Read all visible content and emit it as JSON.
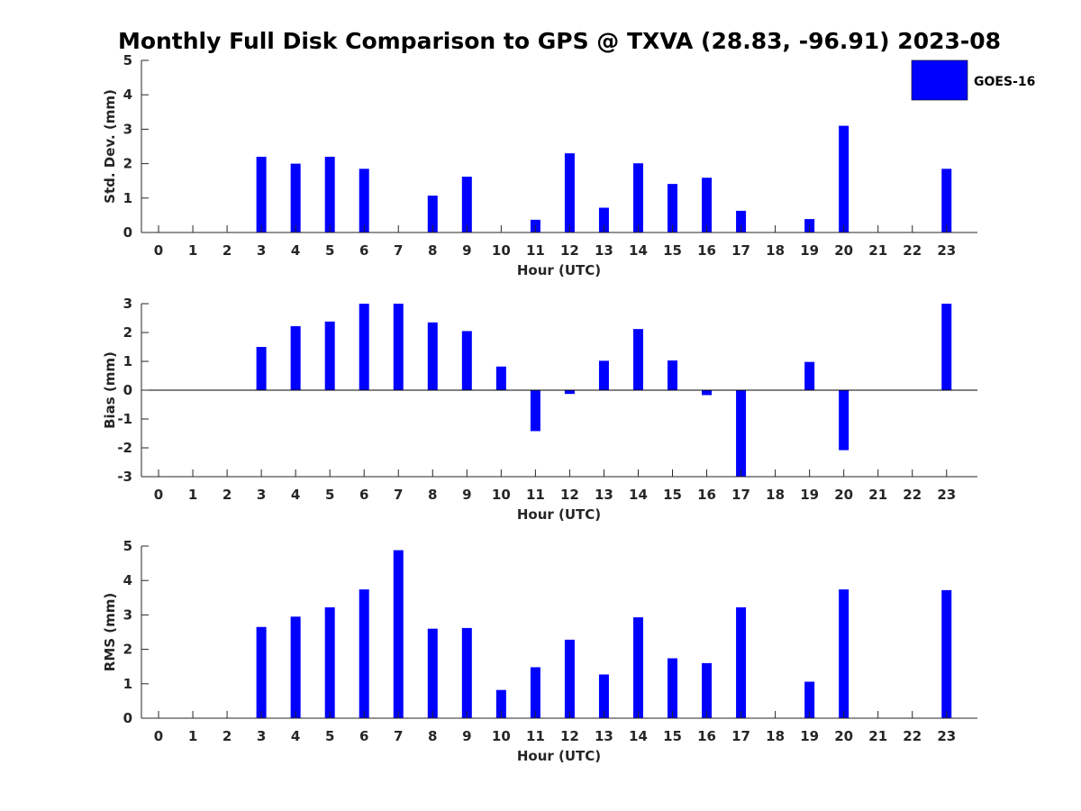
{
  "chart_data": {
    "title": "Monthly Full Disk Comparison to GPS @ TXVA (28.83, -96.91) 2023-08",
    "legend": {
      "label": "GOES-16",
      "placement": "top-right",
      "color": "#0000ff"
    },
    "bar_color": "#0000ff",
    "charts": [
      {
        "type": "bar",
        "name": "std-dev",
        "ylabel": "Std. Dev. (mm)",
        "xlabel": "Hour (UTC)",
        "xlim": [
          -0.5,
          23.9
        ],
        "ylim": [
          0,
          5
        ],
        "yticks": [
          0,
          1,
          2,
          3,
          4,
          5
        ],
        "categories": [
          "0",
          "1",
          "2",
          "3",
          "4",
          "5",
          "6",
          "7",
          "8",
          "9",
          "10",
          "11",
          "12",
          "13",
          "14",
          "15",
          "16",
          "17",
          "18",
          "19",
          "20",
          "21",
          "22",
          "23"
        ],
        "values": [
          null,
          null,
          null,
          2.2,
          2.0,
          2.2,
          1.85,
          null,
          1.07,
          1.62,
          null,
          0.37,
          2.3,
          0.72,
          2.01,
          1.41,
          1.59,
          0.63,
          null,
          0.39,
          3.1,
          null,
          null,
          1.85
        ]
      },
      {
        "type": "bar",
        "name": "bias",
        "ylabel": "Bias (mm)",
        "xlabel": "Hour (UTC)",
        "xlim": [
          -0.5,
          23.9
        ],
        "ylim": [
          -3,
          3
        ],
        "yticks": [
          -3,
          -2,
          -1,
          0,
          1,
          2,
          3
        ],
        "zero_line": true,
        "categories": [
          "0",
          "1",
          "2",
          "3",
          "4",
          "5",
          "6",
          "7",
          "8",
          "9",
          "10",
          "11",
          "12",
          "13",
          "14",
          "15",
          "16",
          "17",
          "18",
          "19",
          "20",
          "21",
          "22",
          "23"
        ],
        "values": [
          null,
          null,
          null,
          1.5,
          2.22,
          2.38,
          3.0,
          3.0,
          2.35,
          2.05,
          0.82,
          -1.42,
          -0.13,
          1.02,
          2.12,
          1.03,
          -0.17,
          -3.0,
          null,
          0.98,
          -2.08,
          null,
          null,
          3.0
        ]
      },
      {
        "type": "bar",
        "name": "rms",
        "ylabel": "RMS (mm)",
        "xlabel": "Hour (UTC)",
        "xlim": [
          -0.5,
          23.9
        ],
        "ylim": [
          0,
          5
        ],
        "yticks": [
          0,
          1,
          2,
          3,
          4,
          5
        ],
        "categories": [
          "0",
          "1",
          "2",
          "3",
          "4",
          "5",
          "6",
          "7",
          "8",
          "9",
          "10",
          "11",
          "12",
          "13",
          "14",
          "15",
          "16",
          "17",
          "18",
          "19",
          "20",
          "21",
          "22",
          "23"
        ],
        "values": [
          null,
          null,
          null,
          2.65,
          2.95,
          3.22,
          3.74,
          4.88,
          2.6,
          2.62,
          0.82,
          1.48,
          2.28,
          1.27,
          2.93,
          1.74,
          1.6,
          3.22,
          null,
          1.06,
          3.74,
          null,
          null,
          3.72
        ]
      }
    ]
  }
}
